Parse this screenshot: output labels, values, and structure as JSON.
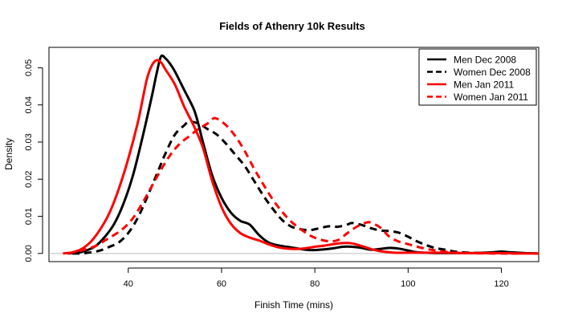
{
  "chart_data": {
    "type": "line",
    "title": "Fields of Athenry 10k Results",
    "xlabel": "Finish Time (mins)",
    "ylabel": "Density",
    "xlim": [
      23,
      128
    ],
    "ylim": [
      -0.0022,
      0.0555
    ],
    "x_ticks": [
      40,
      60,
      80,
      100,
      120
    ],
    "x_tick_labels": [
      "40",
      "60",
      "80",
      "100",
      "120"
    ],
    "y_ticks": [
      0.0,
      0.01,
      0.02,
      0.03,
      0.04,
      0.05
    ],
    "y_tick_labels": [
      "0.00",
      "0.01",
      "0.02",
      "0.03",
      "0.04",
      "0.05"
    ],
    "grid": false,
    "legend_position": "top-right",
    "baseline": 0,
    "series": [
      {
        "name": "Men Dec 2008",
        "color": "#000000",
        "dash": "solid",
        "points": [
          [
            27,
            0.0
          ],
          [
            29,
            0.0002
          ],
          [
            31,
            0.0008
          ],
          [
            33,
            0.002
          ],
          [
            35,
            0.0045
          ],
          [
            37,
            0.008
          ],
          [
            39,
            0.0135
          ],
          [
            41,
            0.021
          ],
          [
            43,
            0.031
          ],
          [
            45,
            0.042
          ],
          [
            46,
            0.048
          ],
          [
            47,
            0.053
          ],
          [
            48,
            0.0525
          ],
          [
            49,
            0.051
          ],
          [
            50,
            0.049
          ],
          [
            52,
            0.044
          ],
          [
            54,
            0.039
          ],
          [
            55,
            0.035
          ],
          [
            56,
            0.03
          ],
          [
            58,
            0.021
          ],
          [
            60,
            0.015
          ],
          [
            62,
            0.011
          ],
          [
            64,
            0.0088
          ],
          [
            66,
            0.0078
          ],
          [
            68,
            0.005
          ],
          [
            70,
            0.003
          ],
          [
            72,
            0.0022
          ],
          [
            74,
            0.0018
          ],
          [
            76,
            0.0014
          ],
          [
            78,
            0.001
          ],
          [
            80,
            0.0009
          ],
          [
            82,
            0.0011
          ],
          [
            84,
            0.0014
          ],
          [
            86,
            0.0018
          ],
          [
            88,
            0.0018
          ],
          [
            90,
            0.0015
          ],
          [
            92,
            0.001
          ],
          [
            94,
            0.0012
          ],
          [
            96,
            0.0015
          ],
          [
            98,
            0.0013
          ],
          [
            100,
            0.0008
          ],
          [
            102,
            0.0003
          ],
          [
            106,
            0.0001
          ],
          [
            110,
            0.0001
          ],
          [
            114,
            0.0001
          ],
          [
            118,
            0.0003
          ],
          [
            120,
            0.0005
          ],
          [
            122,
            0.0003
          ],
          [
            125,
            0.0001
          ],
          [
            128,
            0.0
          ]
        ]
      },
      {
        "name": "Women Dec 2008",
        "color": "#000000",
        "dash": "dashed",
        "points": [
          [
            28,
            0.0
          ],
          [
            30,
            0.0
          ],
          [
            32,
            0.0003
          ],
          [
            34,
            0.0008
          ],
          [
            36,
            0.0018
          ],
          [
            38,
            0.003
          ],
          [
            40,
            0.0055
          ],
          [
            42,
            0.0095
          ],
          [
            44,
            0.015
          ],
          [
            46,
            0.021
          ],
          [
            48,
            0.027
          ],
          [
            50,
            0.032
          ],
          [
            52,
            0.0345
          ],
          [
            53,
            0.0355
          ],
          [
            55,
            0.035
          ],
          [
            57,
            0.0335
          ],
          [
            59,
            0.032
          ],
          [
            61,
            0.0295
          ],
          [
            63,
            0.0265
          ],
          [
            65,
            0.0235
          ],
          [
            67,
            0.0195
          ],
          [
            69,
            0.0155
          ],
          [
            71,
            0.012
          ],
          [
            73,
            0.009
          ],
          [
            75,
            0.0072
          ],
          [
            77,
            0.0065
          ],
          [
            79,
            0.0063
          ],
          [
            81,
            0.0068
          ],
          [
            83,
            0.0073
          ],
          [
            85,
            0.0072
          ],
          [
            87,
            0.0078
          ],
          [
            88,
            0.0082
          ],
          [
            90,
            0.0077
          ],
          [
            92,
            0.0068
          ],
          [
            94,
            0.0062
          ],
          [
            96,
            0.006
          ],
          [
            98,
            0.0056
          ],
          [
            100,
            0.0045
          ],
          [
            102,
            0.0032
          ],
          [
            104,
            0.0022
          ],
          [
            106,
            0.0014
          ],
          [
            108,
            0.001
          ],
          [
            110,
            0.0005
          ],
          [
            113,
            0.0002
          ],
          [
            118,
            0.0001
          ],
          [
            124,
            0.0
          ]
        ]
      },
      {
        "name": "Men Jan 2011",
        "color": "#ff0000",
        "dash": "solid",
        "points": [
          [
            26,
            0.0
          ],
          [
            28,
            0.0003
          ],
          [
            30,
            0.0012
          ],
          [
            32,
            0.0032
          ],
          [
            34,
            0.0065
          ],
          [
            36,
            0.011
          ],
          [
            38,
            0.0175
          ],
          [
            40,
            0.0255
          ],
          [
            42,
            0.035
          ],
          [
            43,
            0.041
          ],
          [
            44,
            0.047
          ],
          [
            45,
            0.0505
          ],
          [
            46,
            0.052
          ],
          [
            47,
            0.0515
          ],
          [
            48,
            0.0495
          ],
          [
            50,
            0.0455
          ],
          [
            52,
            0.0395
          ],
          [
            54,
            0.0345
          ],
          [
            56,
            0.0285
          ],
          [
            58,
            0.0195
          ],
          [
            60,
            0.0125
          ],
          [
            62,
            0.008
          ],
          [
            64,
            0.0055
          ],
          [
            66,
            0.0043
          ],
          [
            68,
            0.0035
          ],
          [
            70,
            0.0025
          ],
          [
            72,
            0.0017
          ],
          [
            74,
            0.0013
          ],
          [
            76,
            0.0012
          ],
          [
            78,
            0.0014
          ],
          [
            80,
            0.0018
          ],
          [
            82,
            0.0021
          ],
          [
            84,
            0.0025
          ],
          [
            86,
            0.0028
          ],
          [
            88,
            0.0027
          ],
          [
            90,
            0.002
          ],
          [
            92,
            0.0012
          ],
          [
            94,
            0.0006
          ],
          [
            97,
            0.0002
          ],
          [
            100,
            0.0002
          ],
          [
            104,
            0.0002
          ],
          [
            108,
            0.0002
          ],
          [
            112,
            0.0001
          ],
          [
            118,
            0.0001
          ],
          [
            124,
            0.0
          ],
          [
            128,
            0.0
          ]
        ]
      },
      {
        "name": "Women Jan 2011",
        "color": "#ff0000",
        "dash": "dashed",
        "points": [
          [
            27,
            0.0
          ],
          [
            30,
            0.0008
          ],
          [
            33,
            0.002
          ],
          [
            35,
            0.0035
          ],
          [
            37,
            0.005
          ],
          [
            39,
            0.0068
          ],
          [
            41,
            0.0095
          ],
          [
            43,
            0.0135
          ],
          [
            45,
            0.018
          ],
          [
            47,
            0.0225
          ],
          [
            49,
            0.0265
          ],
          [
            51,
            0.0295
          ],
          [
            53,
            0.0315
          ],
          [
            55,
            0.0335
          ],
          [
            57,
            0.035
          ],
          [
            58,
            0.0362
          ],
          [
            59,
            0.0363
          ],
          [
            61,
            0.0345
          ],
          [
            63,
            0.0315
          ],
          [
            65,
            0.0275
          ],
          [
            67,
            0.0228
          ],
          [
            69,
            0.0185
          ],
          [
            71,
            0.0145
          ],
          [
            73,
            0.0112
          ],
          [
            75,
            0.0085
          ],
          [
            77,
            0.0065
          ],
          [
            79,
            0.0048
          ],
          [
            81,
            0.0038
          ],
          [
            83,
            0.0033
          ],
          [
            85,
            0.0036
          ],
          [
            87,
            0.0055
          ],
          [
            89,
            0.0072
          ],
          [
            91,
            0.0083
          ],
          [
            92,
            0.0083
          ],
          [
            94,
            0.007
          ],
          [
            96,
            0.0045
          ],
          [
            98,
            0.0032
          ],
          [
            100,
            0.0025
          ],
          [
            102,
            0.0018
          ],
          [
            104,
            0.0012
          ],
          [
            106,
            0.0008
          ],
          [
            109,
            0.0003
          ],
          [
            112,
            0.0001
          ],
          [
            118,
            0.0
          ],
          [
            124,
            0.0
          ]
        ]
      }
    ]
  }
}
